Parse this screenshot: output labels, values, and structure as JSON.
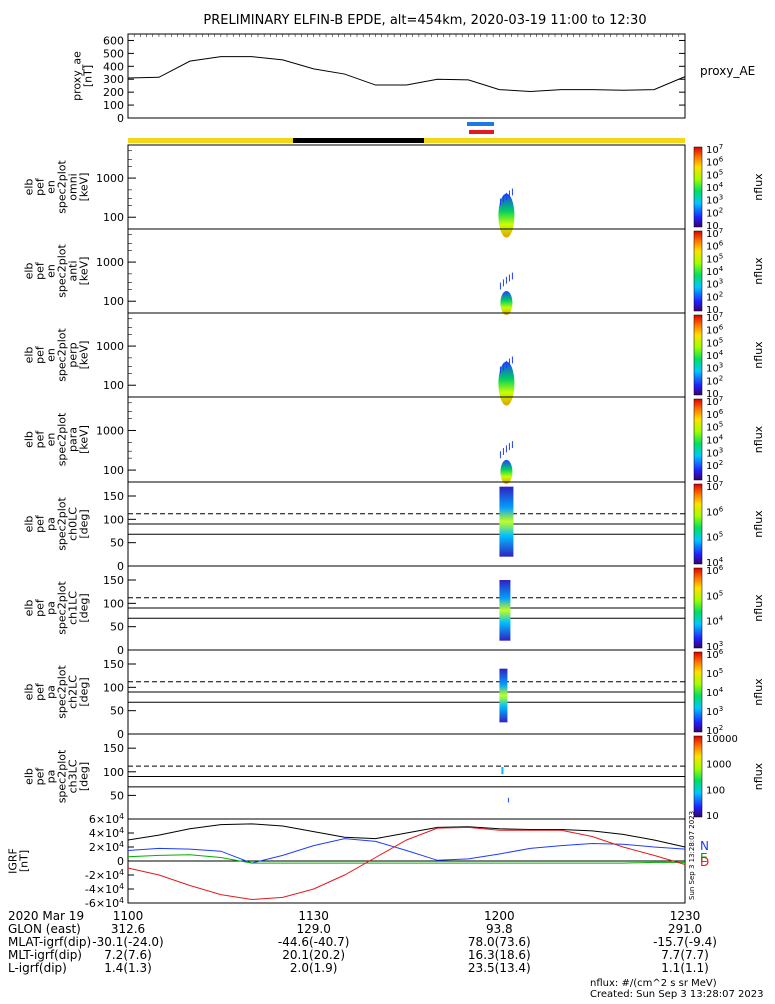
{
  "title": "PRELIMINARY ELFIN-B EPDE, alt=454km, 2020-03-19 11:00 to 12:30",
  "colors": {
    "yellow": "#f5d815",
    "black": "#000000",
    "blue": "#1e78e6",
    "red": "#e31a1c"
  },
  "chart_data": [
    {
      "type": "line",
      "name": "proxy_ae",
      "ylabel": [
        "proxy_ae",
        "[nT]"
      ],
      "legend": "proxy_AE",
      "ylim": [
        0,
        650
      ],
      "yticks": [
        "0",
        "100",
        "200",
        "300",
        "400",
        "500",
        "600"
      ],
      "x_min": [
        0,
        5,
        10,
        15,
        20,
        25,
        30,
        35,
        40,
        45,
        50,
        55,
        60,
        65,
        70,
        75,
        80,
        85,
        90
      ],
      "values": [
        310,
        315,
        440,
        475,
        475,
        450,
        380,
        340,
        255,
        255,
        300,
        295,
        220,
        205,
        220,
        220,
        215,
        220,
        320
      ]
    },
    {
      "type": "heatmap",
      "name": "elb_pef_en_spec2plot_omni",
      "ylabel": [
        "elb",
        "pef",
        "en",
        "spec2plot",
        "omni",
        "[keV]"
      ],
      "yticks": [
        "100",
        "1000"
      ],
      "zlabel": "nflux",
      "zticks": [
        "10",
        "10^2",
        "10^3",
        "10^4",
        "10^5",
        "10^6",
        "10^7"
      ],
      "zlim": [
        10,
        10000000
      ]
    },
    {
      "type": "heatmap",
      "name": "elb_pef_en_spec2plot_anti",
      "ylabel": [
        "elb",
        "pef",
        "en",
        "spec2plot",
        "anti",
        "[keV]"
      ],
      "yticks": [
        "100",
        "1000"
      ],
      "zlabel": "nflux",
      "zticks": [
        "10",
        "10^2",
        "10^3",
        "10^4",
        "10^5",
        "10^6",
        "10^7"
      ]
    },
    {
      "type": "heatmap",
      "name": "elb_pef_en_spec2plot_perp",
      "ylabel": [
        "elb",
        "pef",
        "en",
        "spec2plot",
        "perp",
        "[keV]"
      ],
      "yticks": [
        "100",
        "1000"
      ],
      "zlabel": "nflux",
      "zticks": [
        "10",
        "10^2",
        "10^3",
        "10^4",
        "10^5",
        "10^6",
        "10^7"
      ]
    },
    {
      "type": "heatmap",
      "name": "elb_pef_en_spec2plot_para",
      "ylabel": [
        "elb",
        "pef",
        "en",
        "spec2plot",
        "para",
        "[keV]"
      ],
      "yticks": [
        "100",
        "1000"
      ],
      "zlabel": "nflux",
      "zticks": [
        "10",
        "10^2",
        "10^3",
        "10^4",
        "10^5",
        "10^6",
        "10^7"
      ]
    },
    {
      "type": "heatmap",
      "name": "elb_pef_pa_spec2plot_ch0LC",
      "ylabel": [
        "elb",
        "pef",
        "pa",
        "spec2plot",
        "ch0LC",
        "[deg]"
      ],
      "yticks": [
        "0",
        "50",
        "100",
        "150"
      ],
      "zlabel": "nflux",
      "zticks": [
        "10^4",
        "10^5",
        "10^6",
        "10^7"
      ]
    },
    {
      "type": "heatmap",
      "name": "elb_pef_pa_spec2plot_ch1LC",
      "ylabel": [
        "elb",
        "pef",
        "pa",
        "spec2plot",
        "ch1LC",
        "[deg]"
      ],
      "yticks": [
        "0",
        "50",
        "100",
        "150"
      ],
      "zlabel": "nflux",
      "zticks": [
        "10^3",
        "10^4",
        "10^5",
        "10^6"
      ]
    },
    {
      "type": "heatmap",
      "name": "elb_pef_pa_spec2plot_ch2LC",
      "ylabel": [
        "elb",
        "pef",
        "pa",
        "spec2plot",
        "ch2LC",
        "[deg]"
      ],
      "yticks": [
        "0",
        "50",
        "100",
        "150"
      ],
      "zlabel": "nflux",
      "zticks": [
        "10^2",
        "10^3",
        "10^4",
        "10^5",
        "10^6"
      ]
    },
    {
      "type": "heatmap",
      "name": "elb_pef_pa_spec2plot_ch3LC",
      "ylabel": [
        "elb",
        "pef",
        "pa",
        "spec2plot",
        "ch3LC",
        "[deg]"
      ],
      "yticks": [
        "50",
        "100",
        "150"
      ],
      "zlabel": "nflux",
      "zticks": [
        "10",
        "100",
        "1000",
        "10000"
      ]
    },
    {
      "type": "line",
      "name": "IGRF",
      "ylabel": [
        "IGRF",
        "[nT]"
      ],
      "ylim": [
        -60000,
        60000
      ],
      "yticks": [
        "-6×10^4",
        "-4×10^4",
        "-2×10^4",
        "0",
        "2×10^4",
        "4×10^4",
        "6×10^4"
      ],
      "legend": [
        "N",
        "E",
        "D"
      ],
      "x_min": [
        0,
        5,
        10,
        15,
        20,
        25,
        30,
        35,
        40,
        45,
        50,
        55,
        60,
        65,
        70,
        75,
        80,
        85,
        90
      ],
      "series": [
        {
          "name": "black",
          "values": [
            30000,
            37000,
            46000,
            52000,
            53000,
            50000,
            42000,
            34000,
            32000,
            40000,
            48000,
            49000,
            46000,
            45000,
            45000,
            43000,
            38000,
            30000,
            20000
          ]
        },
        {
          "name": "blue",
          "values": [
            15000,
            18000,
            17000,
            14000,
            -3000,
            8000,
            22000,
            32000,
            28000,
            15000,
            1000,
            3000,
            10000,
            18000,
            22000,
            25000,
            24000,
            20000,
            17000
          ]
        },
        {
          "name": "green",
          "values": [
            6000,
            8000,
            9000,
            5000,
            -3000,
            -3000,
            -3000,
            -3000,
            -3000,
            -3000,
            -3000,
            -3000,
            -3000,
            -3000,
            -3000,
            -3000,
            -3000,
            -2000,
            -2000
          ]
        },
        {
          "name": "red",
          "values": [
            -10000,
            -20000,
            -35000,
            -48000,
            -55000,
            -52000,
            -40000,
            -20000,
            5000,
            30000,
            47000,
            48000,
            44000,
            44000,
            44000,
            35000,
            20000,
            8000,
            -5000
          ]
        }
      ]
    }
  ],
  "time_axis": {
    "date": "2020 Mar 19",
    "ticks": [
      "1100",
      "1130",
      "1200",
      "1230"
    ],
    "rows": [
      {
        "label": "GLON (east)",
        "values": [
          "312.6",
          "129.0",
          "93.8",
          "291.0"
        ]
      },
      {
        "label": "MLAT-igrf(dip)",
        "values": [
          "-30.1(-24.0)",
          "-44.6(-40.7)",
          "78.0(73.6)",
          "-15.7(-9.4)"
        ]
      },
      {
        "label": "MLT-igrf(dip)",
        "values": [
          "7.2(7.6)",
          "20.1(20.2)",
          "16.3(18.6)",
          "7.7(7.7)"
        ]
      },
      {
        "label": "L-igrf(dip)",
        "values": [
          "1.4(1.3)",
          "2.0(1.9)",
          "23.5(13.4)",
          "1.1(1.1)"
        ]
      }
    ]
  },
  "footer": {
    "units": "nflux: #/(cm^2 s sr MeV)",
    "created": "Created: Sun Sep  3 13:28:07 2023",
    "side_stamp": "Sun Sep  3 13:28:07 2023"
  }
}
